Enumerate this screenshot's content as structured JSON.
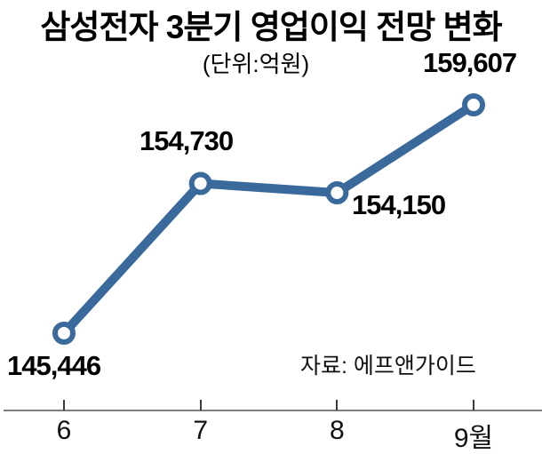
{
  "title": "삼성전자 3분기 영업이익 전망 변화",
  "subtitle": "(단위:억원)",
  "source": "자료: 에프앤가이드",
  "colors": {
    "line": "#3a699c",
    "marker_fill": "#ffffff",
    "axis_line": "#7f7f7f",
    "tick": "#3c3c3c",
    "text": "#000000"
  },
  "chart_data": {
    "type": "line",
    "title": "삼성전자 3분기 영업이익 전망 변화",
    "unit_label": "(단위:억원)",
    "source_label": "자료: 에프앤가이드",
    "categories": [
      "6",
      "7",
      "8",
      "9월"
    ],
    "values": [
      145446,
      154730,
      154150,
      159607
    ],
    "value_labels": [
      "145,446",
      "154,730",
      "154,150",
      "159,607"
    ],
    "xlabel": "",
    "ylabel": "",
    "ylim": [
      144000,
      161000
    ],
    "grid": false,
    "legend": false,
    "marker": "open-circle",
    "line_color": "#3a699c"
  }
}
